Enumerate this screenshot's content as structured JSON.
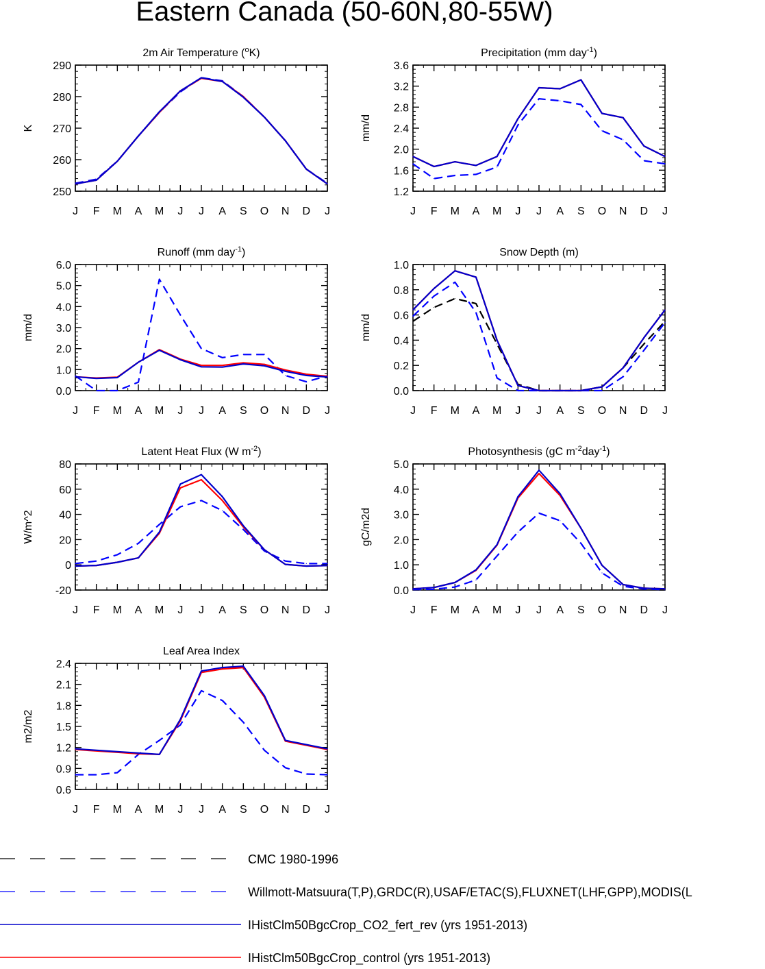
{
  "page": {
    "title": "Eastern Canada (50-60N,80-55W)"
  },
  "months": [
    "J",
    "F",
    "M",
    "A",
    "M",
    "J",
    "J",
    "A",
    "S",
    "O",
    "N",
    "D",
    "J"
  ],
  "colors": {
    "cmc": "#000000",
    "obs": "#0000ff",
    "co2": "#0000cc",
    "control": "#ff0000"
  },
  "legend": [
    {
      "label": "CMC 1980-1996",
      "color": "#000000",
      "dash": true
    },
    {
      "label": "Willmott-Matsuura(T,P),GRDC(R),USAF/ETAC(S),FLUXNET(LHF,GPP),MODIS(L",
      "color": "#0000ff",
      "dash": true
    },
    {
      "label": "IHistClm50BgcCrop_CO2_fert_rev (yrs 1951-2013)",
      "color": "#0000cc",
      "dash": false
    },
    {
      "label": "IHistClm50BgcCrop_control (yrs 1951-2013)",
      "color": "#ff0000",
      "dash": false
    }
  ],
  "chart_data": [
    {
      "type": "line",
      "title": "2m Air Temperature (",
      "title_sup": "o",
      "title_after": "K)",
      "ylabel": "K",
      "ylim": [
        250,
        290
      ],
      "yticks": [
        250,
        260,
        270,
        280,
        290
      ],
      "yticklabels": [
        "250",
        "260",
        "270",
        "280",
        "290"
      ],
      "x": [
        "J",
        "F",
        "M",
        "A",
        "M",
        "J",
        "J",
        "A",
        "S",
        "O",
        "N",
        "D",
        "J"
      ],
      "series": [
        {
          "values": [
            252.5,
            253.8,
            259.5,
            267.5,
            275.0,
            281.5,
            286.0,
            285.0,
            280.0,
            273.5,
            266.0,
            257.0,
            252.5
          ],
          "color": "#0000ff",
          "dash": true
        },
        {
          "values": [
            252.3,
            253.5,
            259.5,
            267.5,
            275.0,
            281.8,
            285.8,
            284.8,
            280.0,
            273.5,
            266.0,
            257.0,
            252.3
          ],
          "color": "#ff0000",
          "dash": false
        },
        {
          "values": [
            252.3,
            253.5,
            259.5,
            267.5,
            275.2,
            281.8,
            286.0,
            284.8,
            279.8,
            273.5,
            266.0,
            257.0,
            252.3
          ],
          "color": "#0000cc",
          "dash": false
        }
      ]
    },
    {
      "type": "line",
      "title": "Precipitation (mm day",
      "title_sup": "-1",
      "title_after": ")",
      "ylabel": "mm/d",
      "ylim": [
        1.2,
        3.6
      ],
      "yticks": [
        1.2,
        1.6,
        2.0,
        2.4,
        2.8,
        3.2,
        3.6
      ],
      "yticklabels": [
        "1.2",
        "1.6",
        "2.0",
        "2.4",
        "2.8",
        "3.2",
        "3.6"
      ],
      "x": [
        "J",
        "F",
        "M",
        "A",
        "M",
        "J",
        "J",
        "A",
        "S",
        "O",
        "N",
        "D",
        "J"
      ],
      "series": [
        {
          "values": [
            1.72,
            1.44,
            1.5,
            1.52,
            1.66,
            2.46,
            2.96,
            2.92,
            2.85,
            2.35,
            2.18,
            1.78,
            1.72
          ],
          "color": "#0000ff",
          "dash": true
        },
        {
          "values": [
            1.86,
            1.67,
            1.76,
            1.69,
            1.86,
            2.58,
            3.17,
            3.15,
            3.32,
            2.68,
            2.6,
            2.06,
            1.86
          ],
          "color": "#ff0000",
          "dash": false
        },
        {
          "values": [
            1.86,
            1.67,
            1.76,
            1.69,
            1.86,
            2.58,
            3.17,
            3.15,
            3.32,
            2.68,
            2.6,
            2.06,
            1.86
          ],
          "color": "#0000cc",
          "dash": false
        }
      ]
    },
    {
      "type": "line",
      "title": "Runoff (mm day",
      "title_sup": "-1",
      "title_after": ")",
      "ylabel": "mm/d",
      "ylim": [
        0,
        6
      ],
      "yticks": [
        0,
        1,
        2,
        3,
        4,
        5,
        6
      ],
      "yticklabels": [
        "0.0",
        "1.0",
        "2.0",
        "3.0",
        "4.0",
        "5.0",
        "6.0"
      ],
      "x": [
        "J",
        "F",
        "M",
        "A",
        "M",
        "J",
        "J",
        "A",
        "S",
        "O",
        "N",
        "D",
        "J"
      ],
      "series": [
        {
          "values": [
            0.7,
            0.0,
            0.0,
            0.4,
            5.3,
            3.6,
            2.0,
            1.57,
            1.72,
            1.72,
            0.72,
            0.42,
            0.7
          ],
          "color": "#0000ff",
          "dash": true
        },
        {
          "values": [
            0.66,
            0.6,
            0.64,
            1.35,
            1.95,
            1.5,
            1.2,
            1.2,
            1.32,
            1.25,
            0.98,
            0.78,
            0.68
          ],
          "color": "#ff0000",
          "dash": false
        },
        {
          "values": [
            0.66,
            0.58,
            0.62,
            1.35,
            1.92,
            1.47,
            1.13,
            1.12,
            1.27,
            1.18,
            0.92,
            0.72,
            0.65
          ],
          "color": "#0000cc",
          "dash": false
        }
      ]
    },
    {
      "type": "line",
      "title": "Snow Depth (m)",
      "title_sup": "",
      "title_after": "",
      "ylabel": "mm/d",
      "ylim": [
        0,
        1
      ],
      "yticks": [
        0,
        0.2,
        0.4,
        0.6,
        0.8,
        1.0
      ],
      "yticklabels": [
        "0.0",
        "0.2",
        "0.4",
        "0.6",
        "0.8",
        "1.0"
      ],
      "x": [
        "J",
        "F",
        "M",
        "A",
        "M",
        "J",
        "J",
        "A",
        "S",
        "O",
        "N",
        "D",
        "J"
      ],
      "series": [
        {
          "values": [
            0.55,
            0.66,
            0.73,
            0.69,
            0.37,
            0.05,
            0.0,
            0.0,
            0.0,
            0.03,
            0.18,
            0.37,
            0.55
          ],
          "color": "#000000",
          "dash": true
        },
        {
          "values": [
            0.59,
            0.75,
            0.86,
            0.62,
            0.1,
            0.0,
            0.0,
            0.0,
            0.0,
            0.0,
            0.11,
            0.32,
            0.54
          ],
          "color": "#0000ff",
          "dash": true
        },
        {
          "values": [
            0.64,
            0.81,
            0.95,
            0.9,
            0.4,
            0.04,
            0.0,
            0.0,
            0.0,
            0.03,
            0.18,
            0.42,
            0.64
          ],
          "color": "#ff0000",
          "dash": false
        },
        {
          "values": [
            0.64,
            0.81,
            0.95,
            0.9,
            0.4,
            0.04,
            0.0,
            0.0,
            0.0,
            0.03,
            0.18,
            0.42,
            0.64
          ],
          "color": "#0000cc",
          "dash": false
        }
      ]
    },
    {
      "type": "line",
      "title": "Latent Heat Flux (W m",
      "title_sup": "-2",
      "title_after": ")",
      "ylabel": "W/m^2",
      "ylim": [
        -20,
        80
      ],
      "yticks": [
        -20,
        0,
        20,
        40,
        60,
        80
      ],
      "yticklabels": [
        "-20",
        "0",
        "20",
        "40",
        "60",
        "80"
      ],
      "x": [
        "J",
        "F",
        "M",
        "A",
        "M",
        "J",
        "J",
        "A",
        "S",
        "O",
        "N",
        "D",
        "J"
      ],
      "series": [
        {
          "values": [
            1,
            3,
            8,
            17,
            32,
            46,
            51,
            43,
            28,
            11,
            3,
            1,
            1
          ],
          "color": "#0000ff",
          "dash": true
        },
        {
          "values": [
            -1,
            -0.5,
            2,
            5.5,
            25,
            61,
            67.5,
            51,
            30,
            12,
            0.3,
            -1,
            -0.6
          ],
          "color": "#ff0000",
          "dash": false
        },
        {
          "values": [
            -1,
            -0.5,
            2,
            5.5,
            26,
            64,
            71.5,
            54,
            31,
            12,
            0.3,
            -1,
            -0.6
          ],
          "color": "#0000cc",
          "dash": false
        }
      ]
    },
    {
      "type": "line",
      "title": "Photosynthesis (gC m",
      "title_sup": "-2",
      "title_after": "day",
      "title_sup2": "-1",
      "title_end": ")",
      "ylabel": "gC/m2d",
      "ylim": [
        0,
        5
      ],
      "yticks": [
        0,
        1,
        2,
        3,
        4,
        5
      ],
      "yticklabels": [
        "0.0",
        "1.0",
        "2.0",
        "3.0",
        "4.0",
        "5.0"
      ],
      "x": [
        "J",
        "F",
        "M",
        "A",
        "M",
        "J",
        "J",
        "A",
        "S",
        "O",
        "N",
        "D",
        "J"
      ],
      "series": [
        {
          "values": [
            0.02,
            0.03,
            0.12,
            0.4,
            1.35,
            2.3,
            3.05,
            2.75,
            1.85,
            0.68,
            0.15,
            0.04,
            0.02
          ],
          "color": "#0000ff",
          "dash": true
        },
        {
          "values": [
            0.05,
            0.1,
            0.3,
            0.78,
            1.78,
            3.65,
            4.62,
            3.75,
            2.45,
            0.98,
            0.22,
            0.07,
            0.05
          ],
          "color": "#ff0000",
          "dash": false
        },
        {
          "values": [
            0.05,
            0.1,
            0.3,
            0.8,
            1.8,
            3.7,
            4.75,
            3.82,
            2.45,
            0.98,
            0.22,
            0.07,
            0.05
          ],
          "color": "#0000cc",
          "dash": false
        }
      ]
    },
    {
      "type": "line",
      "title": "Leaf Area Index",
      "title_sup": "",
      "title_after": "",
      "ylabel": "m2/m2",
      "ylim": [
        0.6,
        2.4
      ],
      "yticks": [
        0.6,
        0.9,
        1.2,
        1.5,
        1.8,
        2.1,
        2.4
      ],
      "yticklabels": [
        "0.6",
        "0.9",
        "1.2",
        "1.5",
        "1.8",
        "2.1",
        "2.4"
      ],
      "x": [
        "J",
        "F",
        "M",
        "A",
        "M",
        "J",
        "J",
        "A",
        "S",
        "O",
        "N",
        "D",
        "J"
      ],
      "series": [
        {
          "values": [
            0.81,
            0.81,
            0.84,
            1.1,
            1.3,
            1.52,
            2.01,
            1.87,
            1.56,
            1.16,
            0.91,
            0.82,
            0.81
          ],
          "color": "#0000ff",
          "dash": true
        },
        {
          "values": [
            1.17,
            1.15,
            1.13,
            1.11,
            1.1,
            1.58,
            2.27,
            2.32,
            2.34,
            1.92,
            1.29,
            1.23,
            1.17
          ],
          "color": "#ff0000",
          "dash": false
        },
        {
          "values": [
            1.18,
            1.16,
            1.14,
            1.12,
            1.1,
            1.6,
            2.29,
            2.34,
            2.36,
            1.94,
            1.3,
            1.24,
            1.18
          ],
          "color": "#0000cc",
          "dash": false
        }
      ]
    }
  ]
}
